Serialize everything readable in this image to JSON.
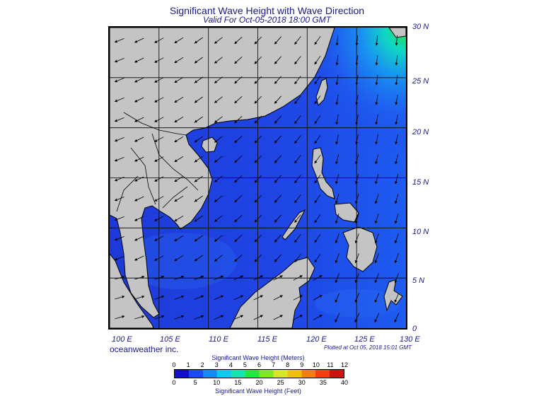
{
  "header": {
    "title": "Significant Wave Height with Wave Direction",
    "subtitle": "Valid For Oct-05-2018 18:00 GMT"
  },
  "map": {
    "longitude_labels": [
      "100 E",
      "105 E",
      "110 E",
      "115 E",
      "120 E",
      "125 E",
      "130 E"
    ],
    "latitude_labels": [
      "30 N",
      "25 N",
      "20 N",
      "15 N",
      "10 N",
      "5 N",
      "0"
    ],
    "extent": {
      "lon": [
        100,
        130
      ],
      "lat": [
        0,
        30
      ]
    },
    "land_color": "#c4c4c4",
    "sea_color_low": "#1f3fe0",
    "arrow_color": "#000000"
  },
  "footer": {
    "brand": "oceanweather inc.",
    "plotted": "Plotted at Oct 05, 2018 15:01 GMT"
  },
  "legend": {
    "meters_title": "Significant Wave Height (Meters)",
    "feet_title": "Significant Wave Height (Feet)",
    "meters_ticks": [
      "0",
      "1",
      "2",
      "3",
      "4",
      "5",
      "6",
      "7",
      "8",
      "9",
      "10",
      "11",
      "12"
    ],
    "feet_ticks": [
      "0",
      "5",
      "10",
      "15",
      "20",
      "25",
      "30",
      "35",
      "40"
    ],
    "colors": [
      "#1010c8",
      "#1a4cf0",
      "#1a88f0",
      "#10c8f0",
      "#10e8b0",
      "#20e840",
      "#80e820",
      "#d8e820",
      "#f0c010",
      "#f08010",
      "#f04010",
      "#d01010"
    ]
  }
}
